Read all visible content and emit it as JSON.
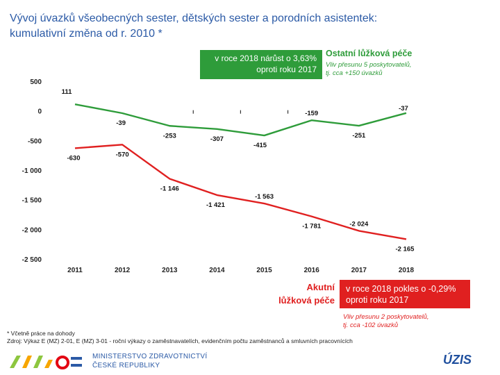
{
  "title": {
    "line1": "Vývoj úvazků všeobecných sester, dětských sester a porodních asistentek:",
    "line2": "kumulativní změna od r. 2010 *"
  },
  "colors": {
    "green": "#2e9c3a",
    "red": "#e02020",
    "title_blue": "#2b5aa6",
    "axis_text": "#222222"
  },
  "annotations": {
    "green_box": {
      "line1": "v roce 2018 nárůst o 3,63%",
      "line2": "oproti roku 2017"
    },
    "green_head": "Ostatní lůžková péče",
    "green_note": {
      "line1": "Vliv přesunu 5 poskytovatelů,",
      "line2": "tj. cca +150 úvazků"
    },
    "red_head": {
      "line1": "Akutní",
      "line2": "lůžková péče"
    },
    "red_box": {
      "line1": "v roce 2018 pokles o -0,29%",
      "line2": "oproti roku 2017"
    },
    "red_note": {
      "line1": "Vliv přesunu 2 poskytovatelů,",
      "line2": "tj. cca -102 úvazků"
    }
  },
  "footnote": {
    "line1": "* Včetně práce na dohody",
    "line2": "Zdroj: Výkaz E (MZ) 2-01, E (MZ) 3-01 - roční výkazy o zaměstnavatelích, evidenčním počtu zaměstnanců a smluvních pracovnících"
  },
  "footer": {
    "ministry_line1": "MINISTERSTVO ZDRAVOTNICTVÍ",
    "ministry_line2": "ČESKÉ REPUBLIKY",
    "uzis": "ÚZIS"
  },
  "chart_data": {
    "type": "line",
    "categories": [
      "2011",
      "2012",
      "2013",
      "2014",
      "2015",
      "2016",
      "2017",
      "2018"
    ],
    "y_ticks": [
      500,
      0,
      -500,
      -1000,
      -1500,
      -2000,
      -2500
    ],
    "y_tick_labels": [
      "500",
      "0",
      "-500",
      "-1 000",
      "-1 500",
      "-2 000",
      "-2 500"
    ],
    "ylim": [
      -2500,
      500
    ],
    "grid": false,
    "series": [
      {
        "name": "Ostatní lůžková péče",
        "color": "#2e9c3a",
        "values": [
          111,
          -39,
          -253,
          -307,
          -415,
          -159,
          -251,
          -37
        ],
        "labels": [
          "111",
          "-39",
          "-253",
          "-307",
          "-415",
          "-159",
          "-251",
          "-37"
        ]
      },
      {
        "name": "Akutní lůžková péče",
        "color": "#e02020",
        "values": [
          -630,
          -570,
          -1146,
          -1421,
          -1563,
          -1781,
          -2024,
          -2165
        ],
        "labels": [
          "-630",
          "-570",
          "-1 146",
          "-1 421",
          "-1 563",
          "-1 781",
          "-2 024",
          "-2 165"
        ]
      }
    ]
  }
}
